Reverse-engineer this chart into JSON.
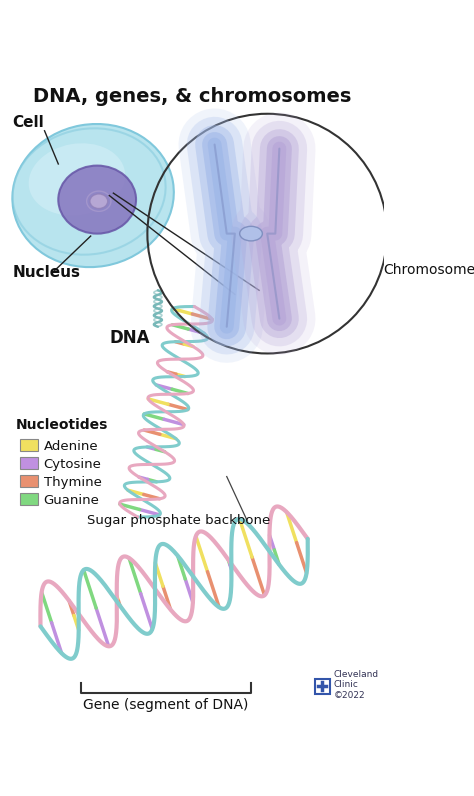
{
  "title": "DNA, genes, & chromosomes",
  "title_fontsize": 14,
  "title_fontweight": "bold",
  "background_color": "#ffffff",
  "labels": {
    "cell": "Cell",
    "nucleus": "Nucleus",
    "dna": "DNA",
    "chromosome": "Chromosome",
    "nucleotides": "Nucleotides",
    "sugar_phosphate": "Sugar phosphate backbone",
    "gene": "Gene (segment of DNA)",
    "adenine": "Adenine",
    "cytosine": "Cytosine",
    "thymine": "Thymine",
    "guanine": "Guanine",
    "cleveland": "Cleveland\nClinic\n©2022"
  },
  "colors": {
    "cell_fill": "#b8e4ee",
    "cell_border": "#80c8dc",
    "nucleus_fill": "#9080c0",
    "nucleus_border": "#7060a8",
    "dna_backbone1": "#80cccc",
    "dna_backbone2": "#e8a8c0",
    "adenine": "#f0e060",
    "cytosine": "#c090e0",
    "thymine": "#e89070",
    "guanine": "#80d880",
    "text_color": "#111111",
    "chromosome1": "#a0b8e8",
    "chromosome2": "#b0a8d8"
  },
  "legend_items": [
    {
      "label": "Adenine",
      "color": "#f0e060"
    },
    {
      "label": "Cytosine",
      "color": "#c090e0"
    },
    {
      "label": "Thymine",
      "color": "#e89070"
    },
    {
      "label": "Guanine",
      "color": "#80d880"
    }
  ]
}
